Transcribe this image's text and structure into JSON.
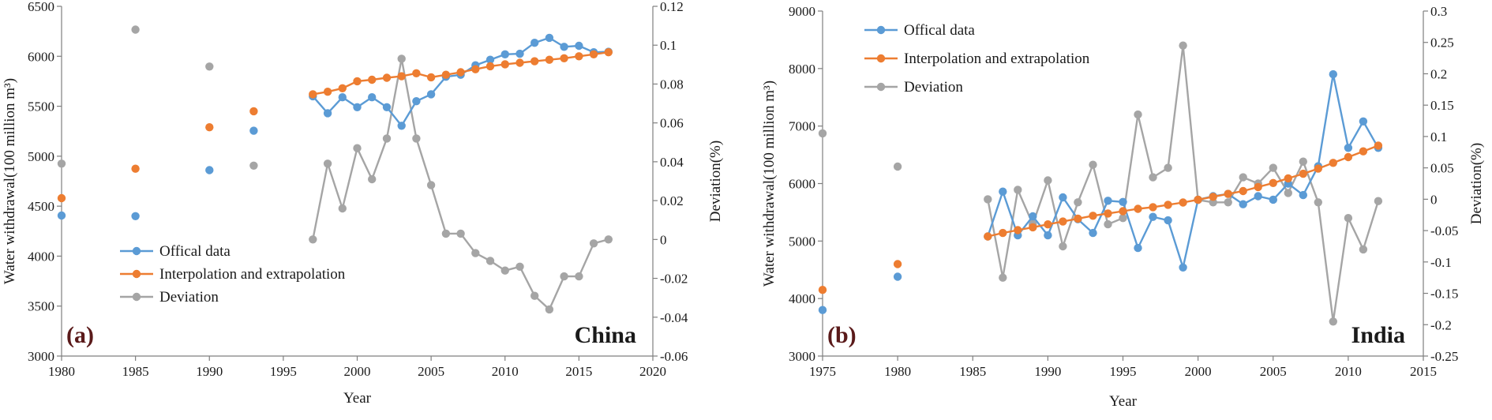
{
  "colors": {
    "official": "#5b9bd5",
    "interpolation": "#ed7d31",
    "deviation": "#a5a5a5",
    "axis": "#7f7f7f",
    "panel_tag": "#5a1a1a"
  },
  "chart_data": [
    {
      "type": "line",
      "panel_label": "(a)",
      "country": "China",
      "xlabel": "Year",
      "ylabel": "Water withdrawal(100 million m³)",
      "y2label": "Deviation(%)",
      "xlim": [
        1980,
        2020
      ],
      "ylim": [
        3000,
        6500
      ],
      "y2lim": [
        -0.06,
        0.12
      ],
      "xticks": [
        1980,
        1985,
        1990,
        1995,
        2000,
        2005,
        2010,
        2015,
        2020
      ],
      "yticks": [
        3000,
        3500,
        4000,
        4500,
        5000,
        5500,
        6000,
        6500
      ],
      "y2ticks": [
        -0.06,
        -0.04,
        -0.02,
        0,
        0.02,
        0.04,
        0.06,
        0.08,
        0.1,
        0.12
      ],
      "legend_position": "bottom-left",
      "series": [
        {
          "name": "Offical data",
          "axis": "left",
          "color": "official",
          "points": [
            [
              1980,
              4406
            ],
            [
              1985,
              4400
            ],
            [
              1990,
              4861
            ],
            [
              1993,
              5255
            ],
            [
              1997,
              5600
            ],
            [
              1998,
              5430
            ],
            [
              1999,
              5590
            ],
            [
              2000,
              5490
            ],
            [
              2001,
              5590
            ],
            [
              2002,
              5490
            ],
            [
              2003,
              5305
            ],
            [
              2004,
              5550
            ],
            [
              2005,
              5620
            ],
            [
              2006,
              5795
            ],
            [
              2007,
              5815
            ],
            [
              2008,
              5910
            ],
            [
              2009,
              5965
            ],
            [
              2010,
              6020
            ],
            [
              2011,
              6025
            ],
            [
              2012,
              6135
            ],
            [
              2013,
              6185
            ],
            [
              2014,
              6095
            ],
            [
              2015,
              6105
            ],
            [
              2016,
              6040
            ],
            [
              2017,
              6045
            ]
          ]
        },
        {
          "name": "Interpolation and extrapolation",
          "axis": "left",
          "color": "interpolation",
          "points": [
            [
              1980,
              4580
            ],
            [
              1985,
              4875
            ],
            [
              1990,
              5290
            ],
            [
              1993,
              5450
            ],
            [
              1997,
              5620
            ],
            [
              1998,
              5645
            ],
            [
              1999,
              5680
            ],
            [
              2000,
              5750
            ],
            [
              2001,
              5765
            ],
            [
              2002,
              5785
            ],
            [
              2003,
              5800
            ],
            [
              2004,
              5830
            ],
            [
              2005,
              5790
            ],
            [
              2006,
              5815
            ],
            [
              2007,
              5840
            ],
            [
              2008,
              5870
            ],
            [
              2009,
              5900
            ],
            [
              2010,
              5920
            ],
            [
              2011,
              5935
            ],
            [
              2012,
              5950
            ],
            [
              2013,
              5965
            ],
            [
              2014,
              5980
            ],
            [
              2015,
              6000
            ],
            [
              2016,
              6020
            ],
            [
              2017,
              6040
            ]
          ]
        },
        {
          "name": "Deviation",
          "axis": "right",
          "color": "deviation",
          "points": [
            [
              1980,
              0.039
            ],
            [
              1985,
              0.108
            ],
            [
              1990,
              0.089
            ],
            [
              1993,
              0.038
            ],
            [
              1997,
              0.0
            ],
            [
              1998,
              0.039
            ],
            [
              1999,
              0.016
            ],
            [
              2000,
              0.047
            ],
            [
              2001,
              0.031
            ],
            [
              2002,
              0.052
            ],
            [
              2003,
              0.093
            ],
            [
              2004,
              0.052
            ],
            [
              2005,
              0.028
            ],
            [
              2006,
              0.003
            ],
            [
              2007,
              0.003
            ],
            [
              2008,
              -0.007
            ],
            [
              2009,
              -0.011
            ],
            [
              2010,
              -0.016
            ],
            [
              2011,
              -0.014
            ],
            [
              2012,
              -0.029
            ],
            [
              2013,
              -0.036
            ],
            [
              2014,
              -0.019
            ],
            [
              2015,
              -0.019
            ],
            [
              2016,
              -0.002
            ],
            [
              2017,
              0.0
            ]
          ]
        }
      ]
    },
    {
      "type": "line",
      "panel_label": "(b)",
      "country": "India",
      "xlabel": "Year",
      "ylabel": "Water withdrawal(100 million m³)",
      "y2label": "Deviation(%)",
      "xlim": [
        1975,
        2015
      ],
      "ylim": [
        3000,
        9000
      ],
      "y2lim": [
        -0.25,
        0.3
      ],
      "xticks": [
        1975,
        1980,
        1985,
        1990,
        1995,
        2000,
        2005,
        2010,
        2015
      ],
      "yticks": [
        3000,
        4000,
        5000,
        6000,
        7000,
        8000,
        9000
      ],
      "y2ticks": [
        -0.25,
        -0.2,
        -0.15,
        -0.1,
        -0.05,
        0,
        0.05,
        0.1,
        0.15,
        0.2,
        0.25,
        0.3
      ],
      "legend_position": "top-left",
      "series": [
        {
          "name": "Offical data",
          "axis": "left",
          "color": "official",
          "points": [
            [
              1975,
              3800
            ],
            [
              1980,
              4380
            ],
            [
              1986,
              5080
            ],
            [
              1987,
              5860
            ],
            [
              1988,
              5100
            ],
            [
              1989,
              5430
            ],
            [
              1990,
              5100
            ],
            [
              1991,
              5760
            ],
            [
              1992,
              5380
            ],
            [
              1993,
              5140
            ],
            [
              1994,
              5700
            ],
            [
              1995,
              5680
            ],
            [
              1996,
              4880
            ],
            [
              1997,
              5420
            ],
            [
              1998,
              5360
            ],
            [
              1999,
              4540
            ],
            [
              2000,
              5720
            ],
            [
              2001,
              5780
            ],
            [
              2002,
              5820
            ],
            [
              2003,
              5640
            ],
            [
              2004,
              5780
            ],
            [
              2005,
              5720
            ],
            [
              2006,
              6000
            ],
            [
              2007,
              5800
            ],
            [
              2008,
              6300
            ],
            [
              2009,
              7900
            ],
            [
              2010,
              6620
            ],
            [
              2011,
              7080
            ],
            [
              2012,
              6620
            ]
          ]
        },
        {
          "name": "Interpolation and extrapolation",
          "axis": "left",
          "color": "interpolation",
          "points": [
            [
              1975,
              4150
            ],
            [
              1980,
              4600
            ],
            [
              1986,
              5080
            ],
            [
              1987,
              5140
            ],
            [
              1988,
              5190
            ],
            [
              1989,
              5240
            ],
            [
              1990,
              5290
            ],
            [
              1991,
              5340
            ],
            [
              1992,
              5390
            ],
            [
              1993,
              5440
            ],
            [
              1994,
              5480
            ],
            [
              1995,
              5520
            ],
            [
              1996,
              5560
            ],
            [
              1997,
              5590
            ],
            [
              1998,
              5630
            ],
            [
              1999,
              5670
            ],
            [
              2000,
              5720
            ],
            [
              2001,
              5770
            ],
            [
              2002,
              5820
            ],
            [
              2003,
              5870
            ],
            [
              2004,
              5940
            ],
            [
              2005,
              6010
            ],
            [
              2006,
              6090
            ],
            [
              2007,
              6170
            ],
            [
              2008,
              6260
            ],
            [
              2009,
              6360
            ],
            [
              2010,
              6460
            ],
            [
              2011,
              6560
            ],
            [
              2012,
              6660
            ]
          ]
        },
        {
          "name": "Deviation",
          "axis": "right",
          "color": "deviation",
          "points": [
            [
              1975,
              0.105
            ],
            [
              1980,
              0.052
            ],
            [
              1986,
              0.0
            ],
            [
              1987,
              -0.125
            ],
            [
              1988,
              0.015
            ],
            [
              1989,
              -0.04
            ],
            [
              1990,
              0.03
            ],
            [
              1991,
              -0.075
            ],
            [
              1992,
              -0.005
            ],
            [
              1993,
              0.055
            ],
            [
              1994,
              -0.04
            ],
            [
              1995,
              -0.03
            ],
            [
              1996,
              0.135
            ],
            [
              1997,
              0.035
            ],
            [
              1998,
              0.05
            ],
            [
              1999,
              0.245
            ],
            [
              2000,
              -0.001
            ],
            [
              2001,
              -0.005
            ],
            [
              2002,
              -0.005
            ],
            [
              2003,
              0.035
            ],
            [
              2004,
              0.025
            ],
            [
              2005,
              0.05
            ],
            [
              2006,
              0.01
            ],
            [
              2007,
              0.06
            ],
            [
              2008,
              -0.005
            ],
            [
              2009,
              -0.195
            ],
            [
              2010,
              -0.03
            ],
            [
              2011,
              -0.08
            ],
            [
              2012,
              -0.003
            ]
          ]
        }
      ]
    }
  ]
}
